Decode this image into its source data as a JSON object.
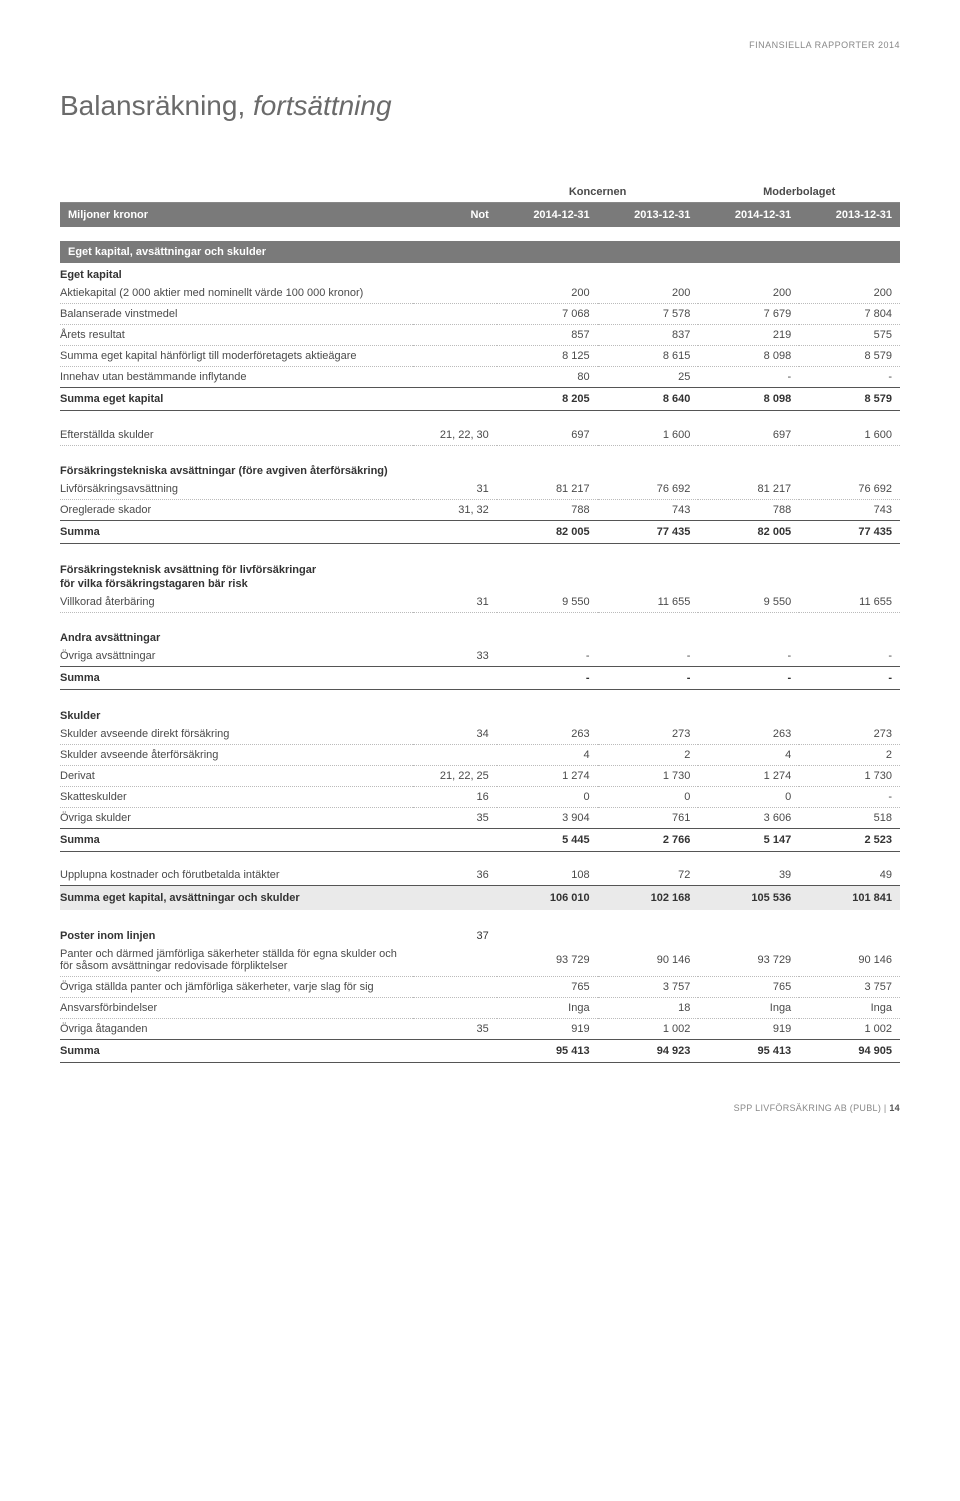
{
  "header": {
    "right": "FINANSIELLA RAPPORTER 2014"
  },
  "title": {
    "main": "Balansräkning, ",
    "italic": "fortsättning"
  },
  "columns": {
    "rowLabel": "Miljoner kronor",
    "not": "Not",
    "group1": "Koncernen",
    "group2": "Moderbolaget",
    "c1": "2014-12-31",
    "c2": "2013-12-31",
    "c3": "2014-12-31",
    "c4": "2013-12-31"
  },
  "sections": {
    "section1": {
      "title": "Eget kapital, avsättningar och skulder"
    },
    "egetkap": {
      "heading": "Eget kapital",
      "r1": {
        "lbl": "Aktiekapital (2 000 aktier med nominellt värde 100 000 kronor)",
        "v1": "200",
        "v2": "200",
        "v3": "200",
        "v4": "200"
      },
      "r2": {
        "lbl": "Balanserade vinstmedel",
        "v1": "7 068",
        "v2": "7 578",
        "v3": "7 679",
        "v4": "7 804"
      },
      "r3": {
        "lbl": "Årets resultat",
        "v1": "857",
        "v2": "837",
        "v3": "219",
        "v4": "575"
      },
      "r4": {
        "lbl": "Summa eget kapital hänförligt till moderföretagets aktieägare",
        "v1": "8 125",
        "v2": "8 615",
        "v3": "8 098",
        "v4": "8 579"
      },
      "r5": {
        "lbl": "Innehav utan bestämmande inflytande",
        "v1": "80",
        "v2": "25",
        "v3": "-",
        "v4": "-"
      },
      "sum": {
        "lbl": "Summa eget kapital",
        "v1": "8 205",
        "v2": "8 640",
        "v3": "8 098",
        "v4": "8 579"
      }
    },
    "efter": {
      "r1": {
        "lbl": "Efterställda skulder",
        "not": "21, 22, 30",
        "v1": "697",
        "v2": "1 600",
        "v3": "697",
        "v4": "1 600"
      }
    },
    "ftek": {
      "heading": "Försäkringstekniska avsättningar (före avgiven återförsäkring)",
      "r1": {
        "lbl": "Livförsäkringsavsättning",
        "not": "31",
        "v1": "81 217",
        "v2": "76 692",
        "v3": "81 217",
        "v4": "76 692"
      },
      "r2": {
        "lbl": "Oreglerade skador",
        "not": "31, 32",
        "v1": "788",
        "v2": "743",
        "v3": "788",
        "v4": "743"
      },
      "sum": {
        "lbl": "Summa",
        "v1": "82 005",
        "v2": "77 435",
        "v3": "82 005",
        "v4": "77 435"
      }
    },
    "fliv": {
      "heading1": "Försäkringsteknisk avsättning för livförsäkringar",
      "heading2": "för vilka försäkringstagaren bär risk",
      "r1": {
        "lbl": "Villkorad återbäring",
        "not": "31",
        "v1": "9 550",
        "v2": "11 655",
        "v3": "9 550",
        "v4": "11 655"
      }
    },
    "andra": {
      "heading": "Andra avsättningar",
      "r1": {
        "lbl": "Övriga avsättningar",
        "not": "33",
        "v1": "-",
        "v2": "-",
        "v3": "-",
        "v4": "-"
      },
      "sum": {
        "lbl": "Summa",
        "v1": "-",
        "v2": "-",
        "v3": "-",
        "v4": "-"
      }
    },
    "skulder": {
      "heading": "Skulder",
      "r1": {
        "lbl": "Skulder avseende direkt försäkring",
        "not": "34",
        "v1": "263",
        "v2": "273",
        "v3": "263",
        "v4": "273"
      },
      "r2": {
        "lbl": "Skulder avseende återförsäkring",
        "v1": "4",
        "v2": "2",
        "v3": "4",
        "v4": "2"
      },
      "r3": {
        "lbl": "Derivat",
        "not": "21, 22, 25",
        "v1": "1 274",
        "v2": "1 730",
        "v3": "1 274",
        "v4": "1 730"
      },
      "r4": {
        "lbl": "Skatteskulder",
        "not": "16",
        "v1": "0",
        "v2": "0",
        "v3": "0",
        "v4": "-"
      },
      "r5": {
        "lbl": "Övriga skulder",
        "not": "35",
        "v1": "3 904",
        "v2": "761",
        "v3": "3 606",
        "v4": "518"
      },
      "sum": {
        "lbl": "Summa",
        "v1": "5 445",
        "v2": "2 766",
        "v3": "5 147",
        "v4": "2 523"
      }
    },
    "uppl": {
      "r1": {
        "lbl": "Upplupna kostnader och förutbetalda intäkter",
        "not": "36",
        "v1": "108",
        "v2": "72",
        "v3": "39",
        "v4": "49"
      },
      "sum": {
        "lbl": "Summa eget kapital, avsättningar och skulder",
        "v1": "106 010",
        "v2": "102 168",
        "v3": "105 536",
        "v4": "101 841"
      }
    },
    "poster": {
      "heading": "Poster inom linjen",
      "headingNot": "37",
      "r1": {
        "lbl": "Panter och därmed jämförliga säkerheter ställda för egna skulder och för såsom avsättningar redovisade förpliktelser",
        "v1": "93 729",
        "v2": "90 146",
        "v3": "93 729",
        "v4": "90 146"
      },
      "r2": {
        "lbl": "Övriga ställda panter och jämförliga säkerheter, varje slag för sig",
        "v1": "765",
        "v2": "3 757",
        "v3": "765",
        "v4": "3 757"
      },
      "r3": {
        "lbl": "Ansvarsförbindelser",
        "v1": "Inga",
        "v2": "18",
        "v3": "Inga",
        "v4": "Inga"
      },
      "r4": {
        "lbl": "Övriga åtaganden",
        "not": "35",
        "v1": "919",
        "v2": "1 002",
        "v3": "919",
        "v4": "1 002"
      },
      "sum": {
        "lbl": "Summa",
        "v1": "95 413",
        "v2": "94 923",
        "v3": "95 413",
        "v4": "94 905"
      }
    }
  },
  "footer": {
    "company": "SPP LIVFÖRSÄKRING AB (PUBL)",
    "sep": " | ",
    "page": "14"
  }
}
